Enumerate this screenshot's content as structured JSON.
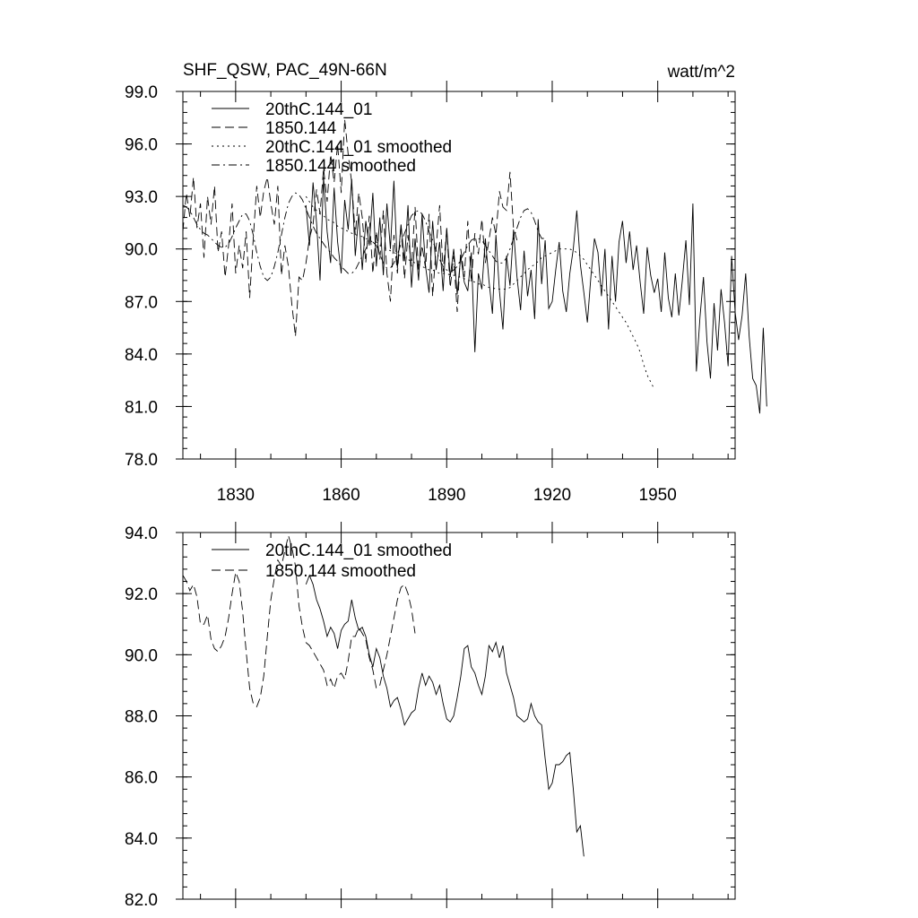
{
  "chart_data": [
    {
      "type": "line",
      "title": "SHF_QSW, PAC_49N-66N",
      "units": "watt/m^2",
      "xlim": [
        1815,
        1972
      ],
      "ylim": [
        78,
        99
      ],
      "yticks": [
        "78.0",
        "81.0",
        "84.0",
        "87.0",
        "90.0",
        "93.0",
        "96.0",
        "99.0"
      ],
      "xticks": [
        "1830",
        "1860",
        "1890",
        "1920",
        "1950"
      ],
      "legend_position": "top-left",
      "series": [
        {
          "name": "20thC.144_01",
          "style": "solid",
          "x_start": 1850,
          "values": [
            92.5,
            90.2,
            93.8,
            91.5,
            88.2,
            94.1,
            91.0,
            89.2,
            93.5,
            90.4,
            88.6,
            92.8,
            91.1,
            94.0,
            89.6,
            92.0,
            88.8,
            91.6,
            90.2,
            93.2,
            89.0,
            91.8,
            88.5,
            92.6,
            90.0,
            93.9,
            88.9,
            91.4,
            89.3,
            92.5,
            87.8,
            90.6,
            88.2,
            92.0,
            89.0,
            87.5,
            91.6,
            88.8,
            90.4,
            87.6,
            91.2,
            88.4,
            90.0,
            87.4,
            89.6,
            88.1,
            87.6,
            89.8,
            84.1,
            88.6,
            87.7,
            90.6,
            88.2,
            86.3,
            90.8,
            87.6,
            85.4,
            89.6,
            87.9,
            91.1,
            88.4,
            86.5,
            89.9,
            87.3,
            88.8,
            86.0,
            91.7,
            88.0,
            90.5,
            86.6,
            87.0,
            88.8,
            90.4,
            87.6,
            86.4,
            88.6,
            90.0,
            92.2,
            89.1,
            87.5,
            85.8,
            88.4,
            90.6,
            89.8,
            87.3,
            90.0,
            85.4,
            89.6,
            87.0,
            90.4,
            91.6,
            89.2,
            91.0,
            88.8,
            90.2,
            88.1,
            86.3,
            90.1,
            88.5,
            87.5,
            88.3,
            86.4,
            89.8,
            87.2,
            86.1,
            88.6,
            86.2,
            88.2,
            90.5,
            86.8,
            92.6,
            83.0,
            86.1,
            88.4,
            84.7,
            82.6,
            86.9,
            84.2,
            87.7,
            85.8,
            83.3,
            89.6,
            86.4,
            84.8,
            86.2,
            88.6,
            85.0,
            82.6,
            82.2,
            80.6,
            85.5,
            81.0
          ]
        },
        {
          "name": "1850.144",
          "style": "dashed",
          "x_start": 1815,
          "values": [
            91.0,
            93.2,
            91.8,
            94.1,
            91.2,
            92.6,
            89.5,
            93.0,
            91.4,
            93.6,
            89.8,
            91.0,
            88.4,
            90.2,
            92.6,
            88.6,
            90.2,
            88.9,
            91.0,
            87.2,
            90.6,
            93.6,
            91.8,
            93.3,
            94.1,
            92.6,
            91.4,
            93.6,
            88.5,
            90.2,
            89.0,
            86.8,
            85.0,
            88.4,
            88.2,
            89.2,
            90.6,
            91.4,
            93.4,
            92.0,
            94.6,
            92.7,
            95.4,
            93.8,
            96.0,
            93.2,
            97.4,
            95.4,
            93.8,
            90.8,
            93.2,
            91.8,
            89.2,
            91.9,
            88.6,
            91.0,
            89.4,
            92.2,
            88.6,
            87.0,
            90.8,
            88.6,
            91.4,
            88.3,
            90.8,
            89.0,
            92.4,
            88.7,
            90.2,
            88.9,
            92.0,
            87.3,
            90.1,
            92.5,
            88.7,
            91.1,
            87.8,
            89.6,
            86.4,
            90.0,
            88.4,
            91.6,
            88.1,
            90.9,
            89.7,
            91.7,
            89.2,
            90.5,
            91.8,
            90.8,
            93.3,
            92.4,
            92.2,
            94.4,
            91.2,
            90.5
          ]
        },
        {
          "name": "20thC.144_01 smoothed",
          "style": "dotted",
          "x_start": 1850,
          "values": [
            93.0,
            92.7,
            92.4,
            92.2,
            92.0,
            91.9,
            91.7,
            91.6,
            91.5,
            91.3,
            91.2,
            91.1,
            91.0,
            90.9,
            90.8,
            90.8,
            90.7,
            90.6,
            90.5,
            90.4,
            90.4,
            90.2,
            90.1,
            90.0,
            89.9,
            89.8,
            89.7,
            89.6,
            89.5,
            89.4,
            89.3,
            89.2,
            89.1,
            89.0,
            88.9,
            88.8,
            88.8,
            88.7,
            88.6,
            88.6,
            88.6,
            88.5,
            88.5,
            88.4,
            88.4,
            88.3,
            88.2,
            88.2,
            88.1,
            88.0,
            88.0,
            87.9,
            87.8,
            87.8,
            87.7,
            87.7,
            87.7,
            87.7,
            87.8,
            88.0,
            88.2,
            88.4,
            88.6,
            88.8,
            89.0,
            89.1,
            89.3,
            89.5,
            89.6,
            89.7,
            89.8,
            89.9,
            90.0,
            90.0,
            90.0,
            90.0,
            89.9,
            89.8,
            89.6,
            89.4,
            89.1,
            88.8,
            88.5,
            88.2,
            87.9,
            87.6,
            87.3,
            87.0,
            86.7,
            86.4,
            86.1,
            85.8,
            85.4,
            85.0,
            84.6,
            84.1,
            83.4,
            82.8,
            82.4,
            82.0
          ]
        },
        {
          "name": "1850.144 smoothed",
          "style": "dash-dot",
          "x_start": 1815,
          "values": [
            92.5,
            92.4,
            92.2,
            91.8,
            91.4,
            91.1,
            90.9,
            90.8,
            90.6,
            90.4,
            90.2,
            90.1,
            90.1,
            90.3,
            90.7,
            91.2,
            91.6,
            92.0,
            92.0,
            91.6,
            90.8,
            89.8,
            89.0,
            88.4,
            88.2,
            88.4,
            89.0,
            89.8,
            90.8,
            91.8,
            92.6,
            93.0,
            93.2,
            93.1,
            92.8,
            92.3,
            91.8,
            91.3,
            90.9,
            90.6,
            90.3,
            90.0,
            89.8,
            89.5,
            89.3,
            89.0,
            88.8,
            88.6,
            88.6,
            88.8,
            89.2,
            89.6,
            90.0,
            90.4,
            90.4,
            90.2,
            89.7,
            89.2,
            88.9,
            88.9,
            89.2,
            89.7,
            90.3,
            90.9,
            91.4,
            91.9,
            92.1,
            92.2,
            92.0,
            91.6,
            91.0,
            90.5,
            89.9,
            89.4,
            89.0,
            88.8,
            88.7,
            88.8,
            89.0,
            89.4,
            89.8,
            90.2,
            90.5,
            90.6,
            90.6,
            90.5,
            90.2,
            89.9,
            89.6,
            89.3,
            89.2,
            89.2,
            89.5,
            90.0,
            90.6,
            91.2,
            91.8,
            92.2,
            92.3,
            92.1,
            91.6,
            91.0,
            90.6,
            90.6
          ]
        }
      ]
    },
    {
      "type": "line",
      "title": "",
      "xlim": [
        1815,
        1972
      ],
      "ylim": [
        82,
        94
      ],
      "yticks": [
        "82.0",
        "84.0",
        "86.0",
        "88.0",
        "90.0",
        "92.0",
        "94.0"
      ],
      "xticks": [],
      "legend_position": "top-left",
      "series": [
        {
          "name": "20thC.144_01 smoothed",
          "style": "solid",
          "x_start": 1850,
          "values": [
            92.3,
            92.6,
            92.3,
            91.8,
            91.5,
            91.1,
            90.6,
            90.9,
            90.7,
            90.2,
            90.8,
            91.0,
            91.1,
            91.8,
            91.2,
            90.8,
            90.9,
            90.6,
            90.0,
            89.6,
            90.2,
            89.9,
            89.3,
            88.9,
            88.3,
            88.5,
            88.6,
            88.2,
            87.7,
            87.9,
            88.1,
            88.2,
            88.9,
            89.4,
            89.0,
            89.3,
            89.1,
            88.7,
            89.0,
            88.4,
            87.9,
            87.8,
            88.0,
            88.6,
            89.3,
            90.2,
            90.3,
            89.6,
            89.4,
            89.0,
            88.7,
            89.3,
            90.3,
            90.1,
            90.4,
            89.9,
            90.3,
            89.4,
            89.0,
            88.6,
            88.0,
            87.9,
            87.8,
            87.9,
            88.4,
            88.0,
            87.8,
            87.7,
            86.6,
            85.6,
            85.8,
            86.4,
            86.4,
            86.5,
            86.7,
            86.8,
            85.6,
            84.2,
            84.4,
            83.4
          ]
        },
        {
          "name": "1850.144 smoothed",
          "style": "dashed",
          "x_start": 1815,
          "values": [
            92.6,
            92.4,
            92.1,
            92.3,
            91.9,
            91.0,
            91.0,
            91.3,
            90.5,
            90.2,
            90.1,
            90.3,
            90.6,
            91.2,
            92.0,
            92.7,
            92.4,
            91.4,
            90.1,
            88.9,
            88.4,
            88.3,
            88.6,
            89.3,
            90.6,
            91.8,
            92.5,
            93.1,
            92.9,
            93.4,
            93.9,
            93.5,
            92.9,
            91.6,
            90.9,
            90.4,
            90.3,
            90.1,
            89.9,
            89.7,
            89.5,
            89.0,
            89.2,
            88.9,
            89.3,
            89.4,
            89.2,
            89.8,
            90.6,
            90.6,
            90.9,
            90.7,
            90.5,
            89.9,
            89.5,
            88.9,
            89.0,
            89.5,
            90.0,
            90.6,
            91.2,
            91.8,
            92.2,
            92.3,
            92.0,
            91.5,
            90.7
          ]
        }
      ]
    }
  ]
}
